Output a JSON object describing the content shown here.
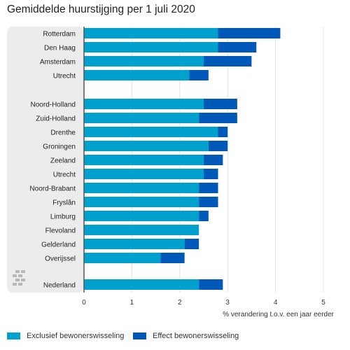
{
  "chart_data": {
    "type": "bar",
    "stacked": true,
    "orientation": "horizontal",
    "title": "Gemiddelde huurstijging per 1 juli 2020",
    "xlabel": "% verandering t.o.v. een jaar eerder",
    "xlim": [
      0,
      5
    ],
    "x_ticks": [
      "0",
      "1",
      "2",
      "3",
      "4",
      "5"
    ],
    "grid": true,
    "legend_position": "bottom",
    "categories": [
      "Rotterdam",
      "Den Haag",
      "Amsterdam",
      "Utrecht",
      "Noord-Holland",
      "Zuid-Holland",
      "Drenthe",
      "Groningen",
      "Zeeland",
      "Utrecht",
      "Noord-Brabant",
      "Fryslân",
      "Limburg",
      "Flevoland",
      "Gelderland",
      "Overijssel",
      "Nederland"
    ],
    "groups": [
      [
        0,
        1,
        2,
        3
      ],
      [
        4,
        5,
        6,
        7,
        8,
        9,
        10,
        11,
        12,
        13,
        14,
        15
      ],
      [
        16
      ]
    ],
    "series": [
      {
        "name": "Exclusief bewonerswisseling",
        "color": "#00a1cd",
        "values": [
          2.8,
          2.8,
          2.5,
          2.2,
          2.5,
          2.4,
          2.8,
          2.6,
          2.5,
          2.5,
          2.4,
          2.4,
          2.4,
          2.4,
          2.1,
          1.6,
          2.4
        ]
      },
      {
        "name": "Effect bewonerswisseling",
        "color": "#0058b8",
        "values": [
          1.3,
          0.8,
          1.0,
          0.4,
          0.7,
          0.8,
          0.2,
          0.4,
          0.4,
          0.3,
          0.4,
          0.4,
          0.2,
          0.0,
          0.3,
          0.5,
          0.5
        ]
      }
    ]
  }
}
